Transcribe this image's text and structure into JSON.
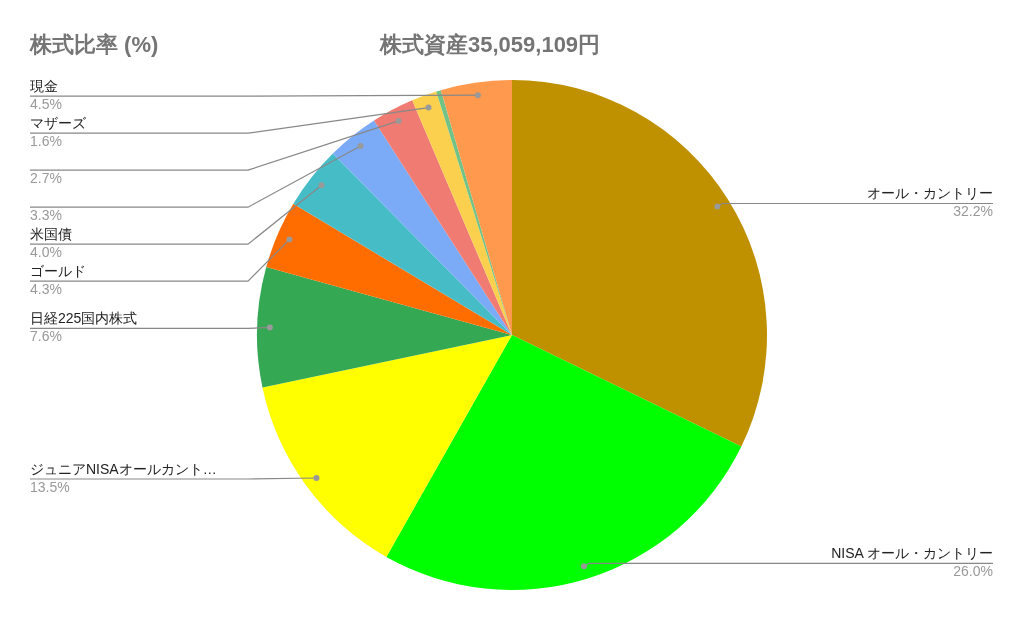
{
  "chart_data": {
    "type": "pie",
    "title": "株式比率 (%)",
    "subtitle": "株式資産35,059,109円",
    "categories": [
      "オール・カントリー",
      "NISA オール・カントリー",
      "ジュニアNISAオールカント…",
      "日経225国内株式",
      "ゴールド",
      "米国債",
      null,
      null,
      "マザーズ",
      null,
      "現金"
    ],
    "values": [
      32.2,
      26.0,
      13.5,
      7.6,
      4.3,
      4.0,
      3.3,
      2.7,
      1.6,
      0.3,
      4.5
    ],
    "value_labels": [
      "32.2%",
      "26.0%",
      "13.5%",
      "7.6%",
      "4.3%",
      "4.0%",
      "3.3%",
      "2.7%",
      "1.6%",
      null,
      "4.5%"
    ],
    "colors": [
      "#bf9000",
      "#00ff00",
      "#ffff00",
      "#34a853",
      "#ff6d01",
      "#46bdc6",
      "#7baaf7",
      "#f07b72",
      "#fcd04f",
      "#71c287",
      "#ff994d"
    ],
    "legend": false
  }
}
